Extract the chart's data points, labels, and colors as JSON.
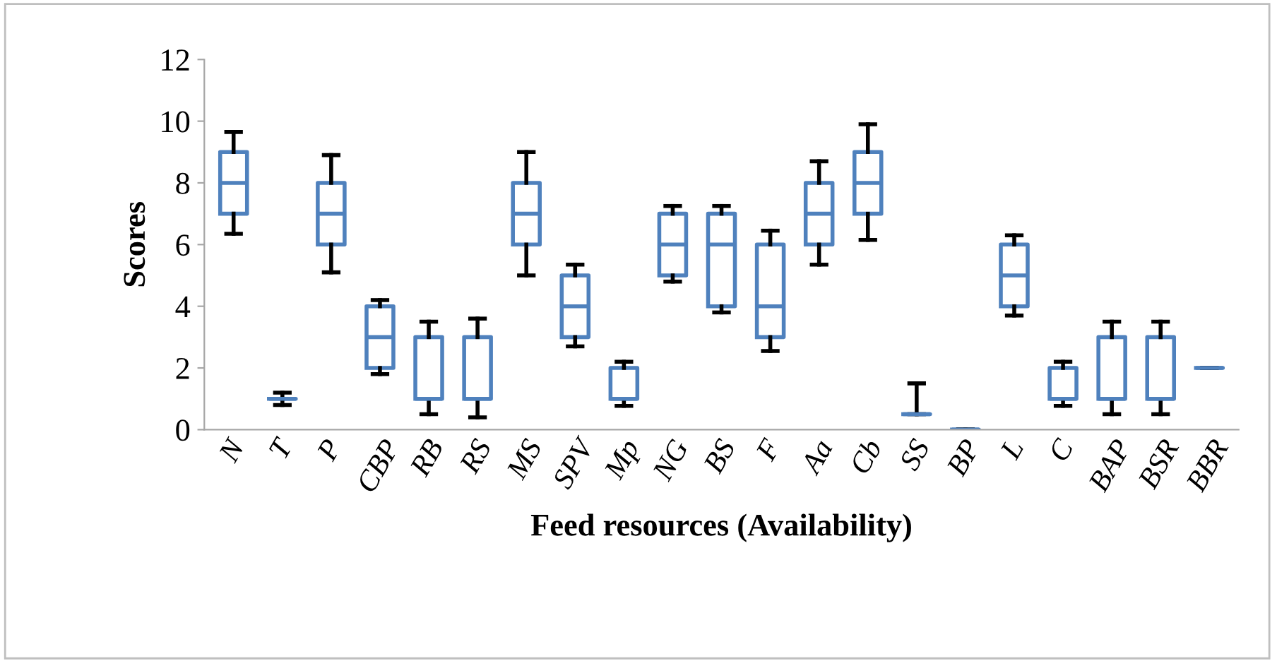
{
  "chart_data": {
    "type": "box",
    "xlabel": "Feed resources (Availability)",
    "ylabel": "Scores",
    "categories": [
      "N",
      "T",
      "P",
      "CBP",
      "RB",
      "RS",
      "MS",
      "SPV",
      "Mp",
      "NG",
      "BS",
      "F",
      "Aa",
      "Cb",
      "SS",
      "BP",
      "L",
      "C",
      "BAP",
      "BSR",
      "BBR"
    ],
    "boxes": [
      {
        "low": 6.35,
        "q1": 7,
        "median": 8,
        "q3": 9,
        "high": 9.65
      },
      {
        "low": 0.8,
        "q1": 1,
        "median": 1,
        "q3": 1,
        "high": 1.2
      },
      {
        "low": 5.1,
        "q1": 6,
        "median": 7,
        "q3": 8,
        "high": 8.9
      },
      {
        "low": 1.8,
        "q1": 2,
        "median": 3,
        "q3": 4,
        "high": 4.2
      },
      {
        "low": 0.5,
        "q1": 1,
        "median": 1,
        "q3": 3,
        "high": 3.5
      },
      {
        "low": 0.4,
        "q1": 1,
        "median": 1,
        "q3": 3,
        "high": 3.6
      },
      {
        "low": 5,
        "q1": 6,
        "median": 7,
        "q3": 8,
        "high": 9
      },
      {
        "low": 2.7,
        "q1": 3,
        "median": 4,
        "q3": 5,
        "high": 5.35
      },
      {
        "low": 0.77,
        "q1": 1,
        "median": 1,
        "q3": 2,
        "high": 2.2
      },
      {
        "low": 4.8,
        "q1": 5,
        "median": 6,
        "q3": 7,
        "high": 7.25
      },
      {
        "low": 3.8,
        "q1": 4,
        "median": 6,
        "q3": 7,
        "high": 7.25
      },
      {
        "low": 2.55,
        "q1": 3,
        "median": 4,
        "q3": 6,
        "high": 6.45
      },
      {
        "low": 5.35,
        "q1": 6,
        "median": 7,
        "q3": 8,
        "high": 8.7
      },
      {
        "low": 6.15,
        "q1": 7,
        "median": 8,
        "q3": 9,
        "high": 9.9
      },
      {
        "low": 0.5,
        "q1": 0.5,
        "median": 0.5,
        "q3": 0.5,
        "high": 1.5
      },
      {
        "low": 0,
        "q1": 0,
        "median": 0,
        "q3": 0,
        "high": 0
      },
      {
        "low": 3.7,
        "q1": 4,
        "median": 5,
        "q3": 6,
        "high": 6.3
      },
      {
        "low": 0.77,
        "q1": 1,
        "median": 1,
        "q3": 2,
        "high": 2.2
      },
      {
        "low": 0.5,
        "q1": 1,
        "median": 1,
        "q3": 3,
        "high": 3.5
      },
      {
        "low": 0.5,
        "q1": 1,
        "median": 1,
        "q3": 3,
        "high": 3.5
      },
      {
        "low": 2,
        "q1": 2,
        "median": 2,
        "q3": 2,
        "high": 2
      }
    ],
    "color": "#4f81bd",
    "ylim": [
      0,
      12
    ],
    "yticks": [
      0,
      2,
      4,
      6,
      8,
      10,
      12
    ],
    "grid": false,
    "legend": false
  }
}
